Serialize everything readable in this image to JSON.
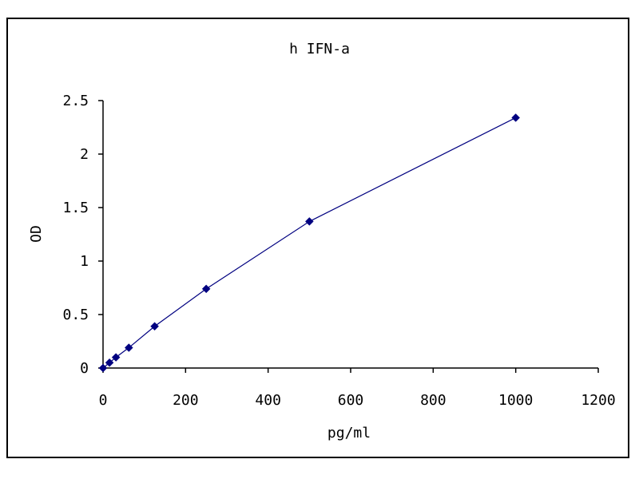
{
  "chart_data": {
    "type": "line",
    "title": "h IFN-a",
    "xlabel": "pg/ml",
    "ylabel": "OD",
    "xlim": [
      0,
      1200
    ],
    "ylim": [
      0,
      2.5
    ],
    "x_ticks": [
      0,
      200,
      400,
      600,
      800,
      1000,
      1200
    ],
    "y_ticks": [
      0,
      0.5,
      1,
      1.5,
      2,
      2.5
    ],
    "x_tick_labels": [
      "0",
      "200",
      "400",
      "600",
      "800",
      "1000",
      "1200"
    ],
    "y_tick_labels": [
      "0",
      "0.5",
      "1",
      "1.5",
      "2",
      "2.5"
    ],
    "grid": false,
    "legend": false,
    "marker": "diamond",
    "series": [
      {
        "x": [
          0,
          15.6,
          31.25,
          62.5,
          125,
          250,
          500,
          1000
        ],
        "y": [
          0.0,
          0.05,
          0.1,
          0.19,
          0.39,
          0.74,
          1.37,
          2.34
        ],
        "color": "#000080"
      }
    ]
  }
}
